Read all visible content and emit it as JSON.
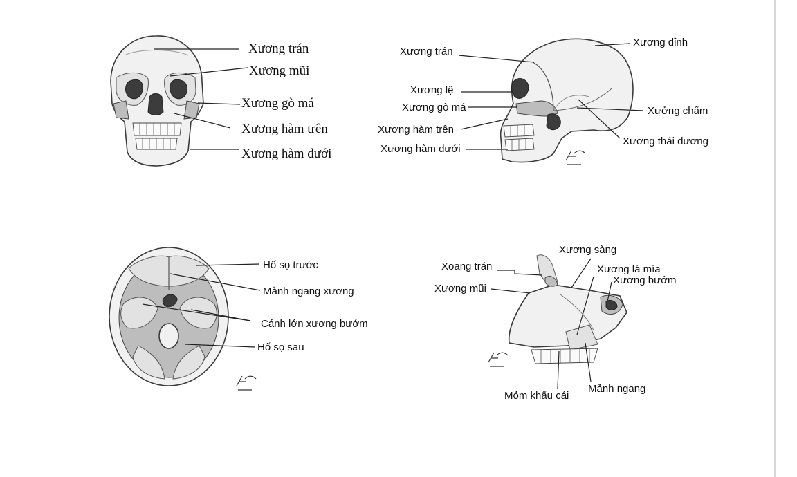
{
  "figures": {
    "front_skull": {
      "labels": {
        "frontal": "Xương trán",
        "nasal": "Xương mũi",
        "zygomatic": "Xương gò má",
        "maxilla": "Xương hàm trên",
        "mandible": "Xương hàm dưới"
      }
    },
    "lateral_skull": {
      "labels": {
        "frontal": "Xương trán",
        "parietal": "Xương đỉnh",
        "lacrimal": "Xương lệ",
        "zygomatic": "Xương gò má",
        "occipital": "Xưởng chẩm",
        "maxilla": "Xương hàm trên",
        "temporal": "Xương thái dương",
        "mandible": "Xương hàm dưới"
      }
    },
    "cranial_base": {
      "labels": {
        "anterior_fossa": "Hố sọ trước",
        "cribriform_plate": "Mảnh ngang xương",
        "greater_wing": "Cánh lớn xương bướm",
        "posterior_fossa": "Hố sọ sau"
      }
    },
    "nasal_septum": {
      "labels": {
        "ethmoid": "Xương sàng",
        "frontal_sinus": "Xoang trán",
        "vomer": "Xương lá mía",
        "nasal": "Xương mũi",
        "sphenoid": "Xương bướm",
        "palatine_process": "Mỏm khẩu cái",
        "horizontal_plate": "Mảnh ngang"
      }
    }
  }
}
